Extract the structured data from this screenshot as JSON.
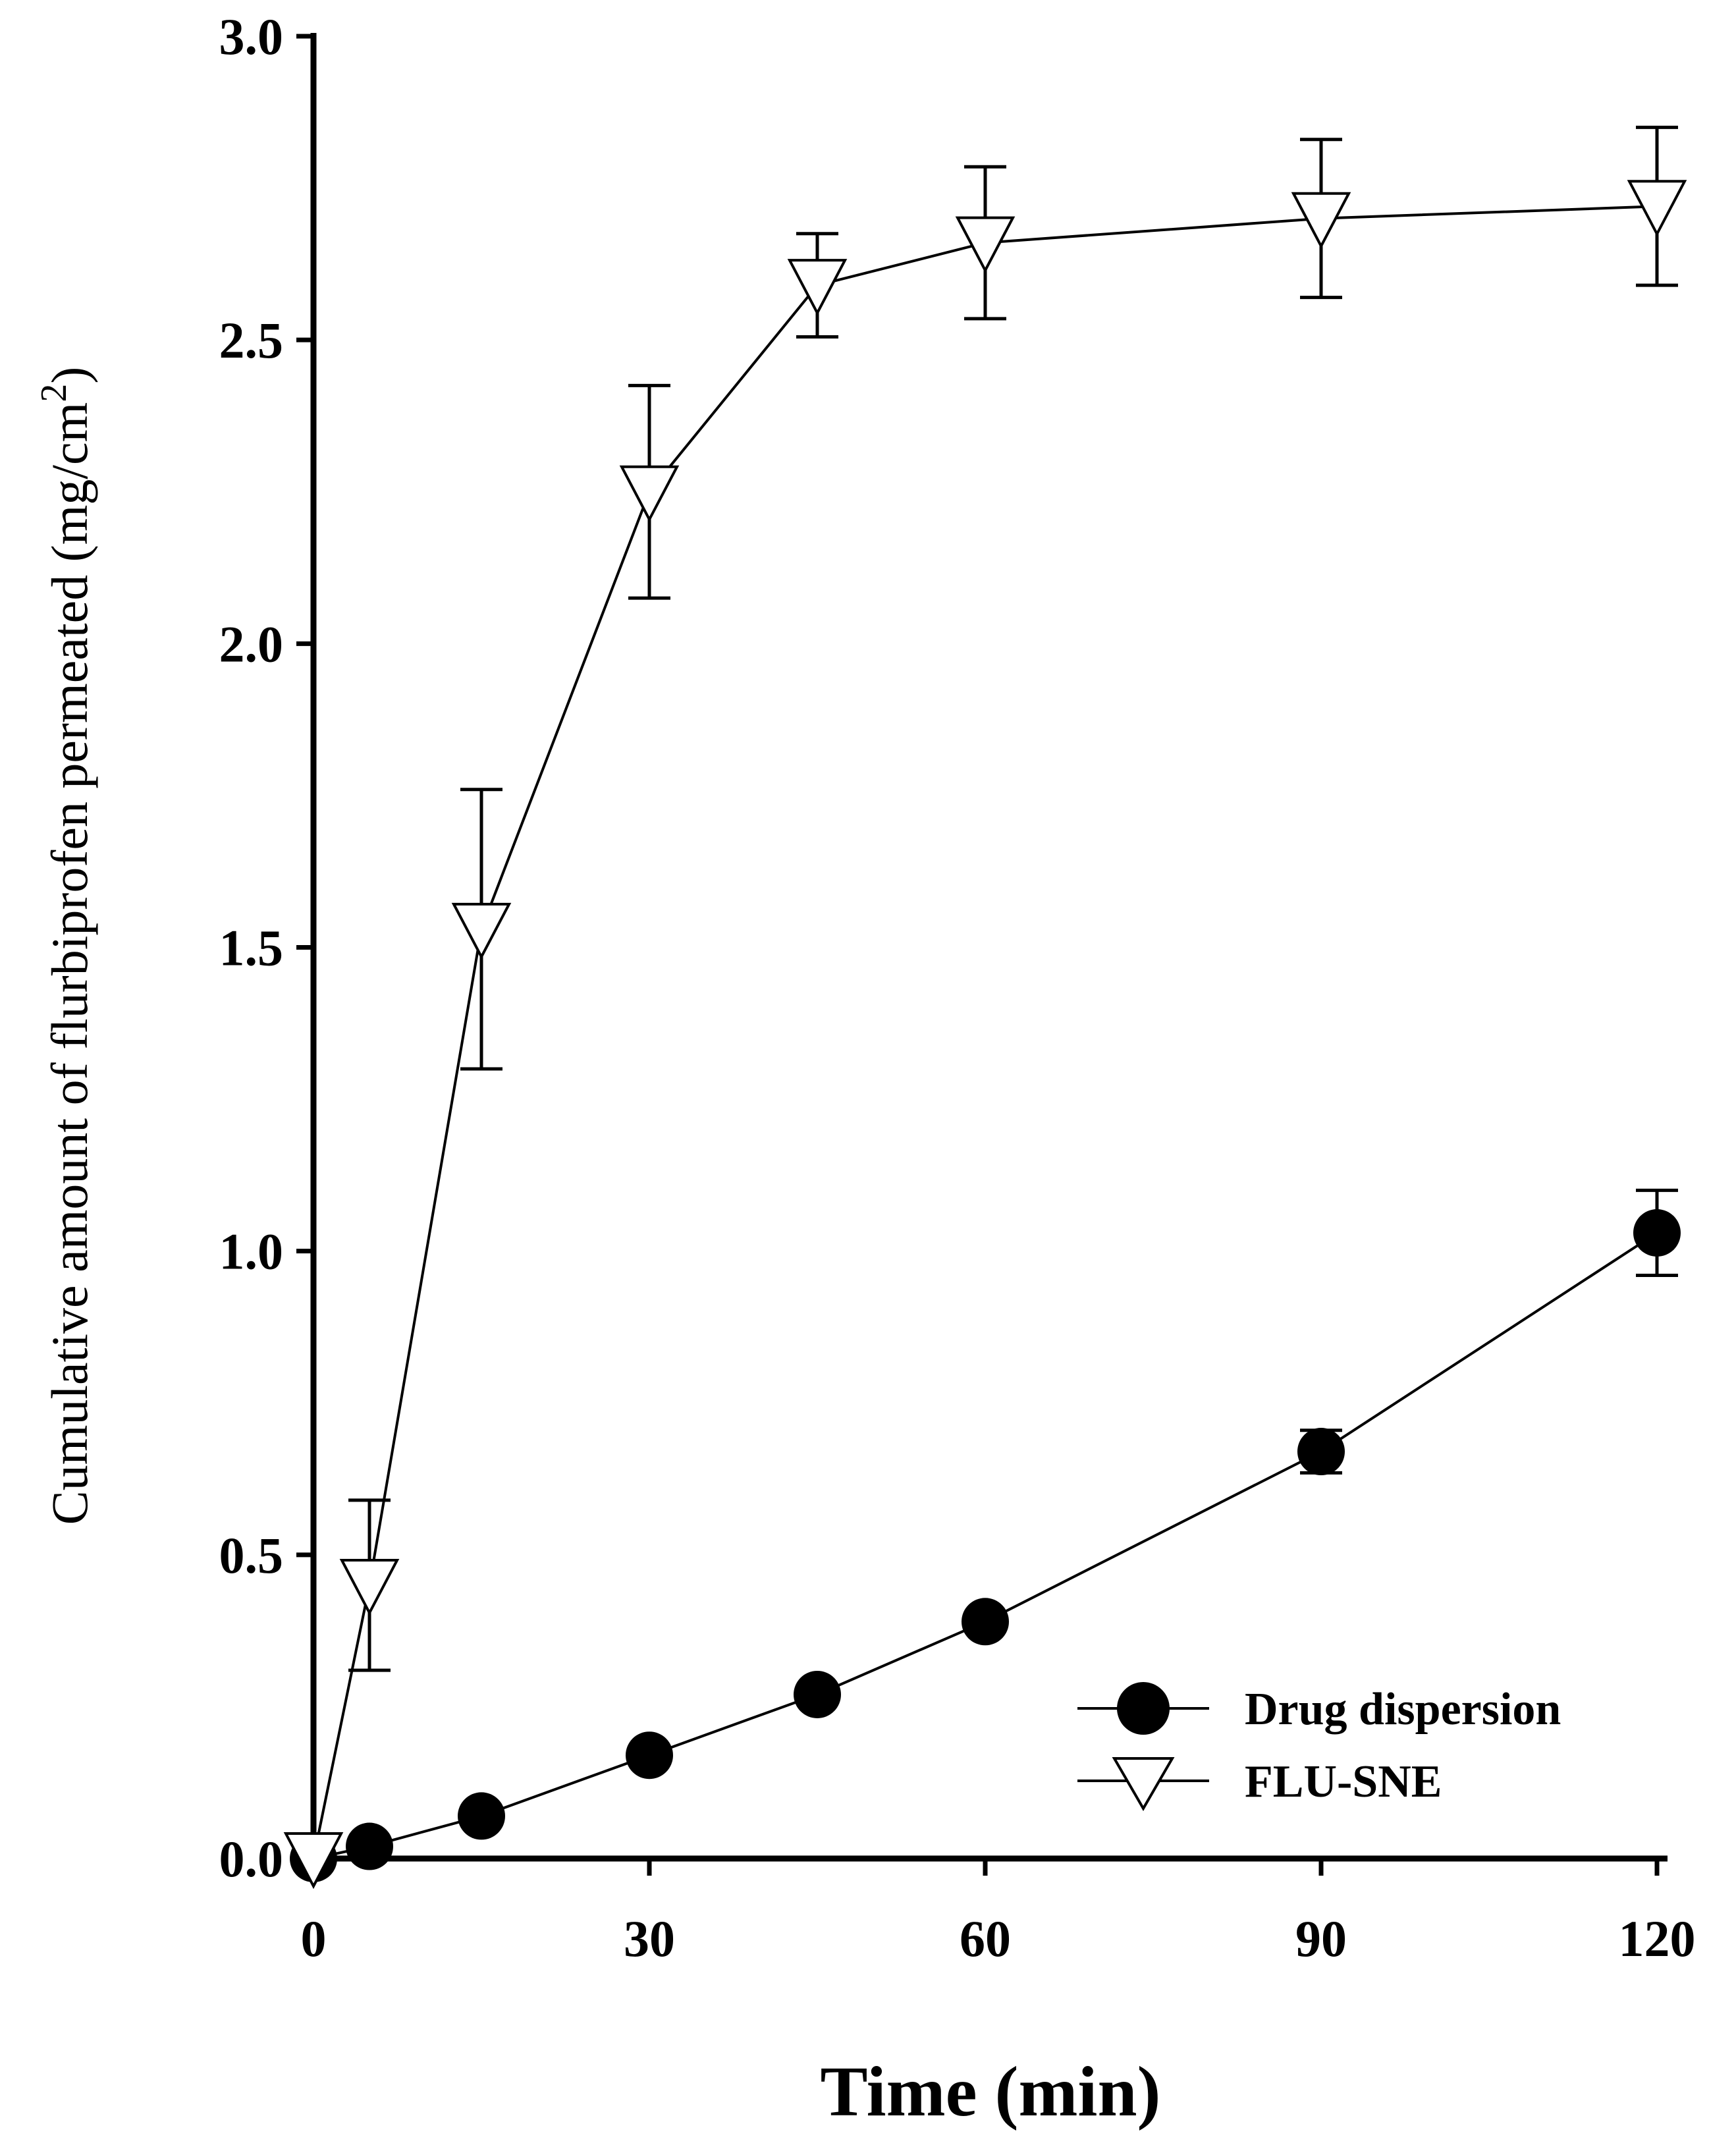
{
  "chart_data": {
    "type": "line",
    "title": "",
    "xlabel": "Time (min)",
    "ylabel": "Cumulative amount of flurbiprofen permeated (mg/cm",
    "ylabel_superscript": "2",
    "ylabel_close": ")",
    "xlim": [
      0,
      120
    ],
    "ylim": [
      0,
      3.0
    ],
    "x_ticks": [
      0,
      30,
      60,
      90,
      120
    ],
    "x_tick_labels": [
      "0",
      "30",
      "60",
      "90",
      "120"
    ],
    "y_ticks": [
      0,
      0.5,
      1.0,
      1.5,
      2.0,
      2.5,
      3.0
    ],
    "y_tick_labels": [
      "0.0",
      "0.5",
      "1.0",
      "1.5",
      "2.0",
      "2.5",
      "3.0"
    ],
    "grid": false,
    "legend_position": "bottom-right",
    "series": [
      {
        "name": "Drug dispersion",
        "marker": "filled-circle",
        "x": [
          0,
          5,
          15,
          30,
          45,
          60,
          90,
          120
        ],
        "values": [
          0.0,
          0.02,
          0.07,
          0.17,
          0.27,
          0.39,
          0.67,
          1.03
        ],
        "error": [
          0,
          0,
          0,
          0,
          0,
          0,
          0.035,
          0.07
        ]
      },
      {
        "name": "FLU-SNE",
        "marker": "open-down-triangle",
        "x": [
          0,
          5,
          15,
          30,
          45,
          60,
          90,
          120
        ],
        "values": [
          0.0,
          0.45,
          1.53,
          2.25,
          2.59,
          2.66,
          2.7,
          2.72
        ],
        "error": [
          0,
          0.14,
          0.23,
          0.175,
          0.085,
          0.125,
          0.13,
          0.13
        ]
      }
    ],
    "colors": {
      "line": "#000000",
      "background": "#ffffff"
    }
  }
}
